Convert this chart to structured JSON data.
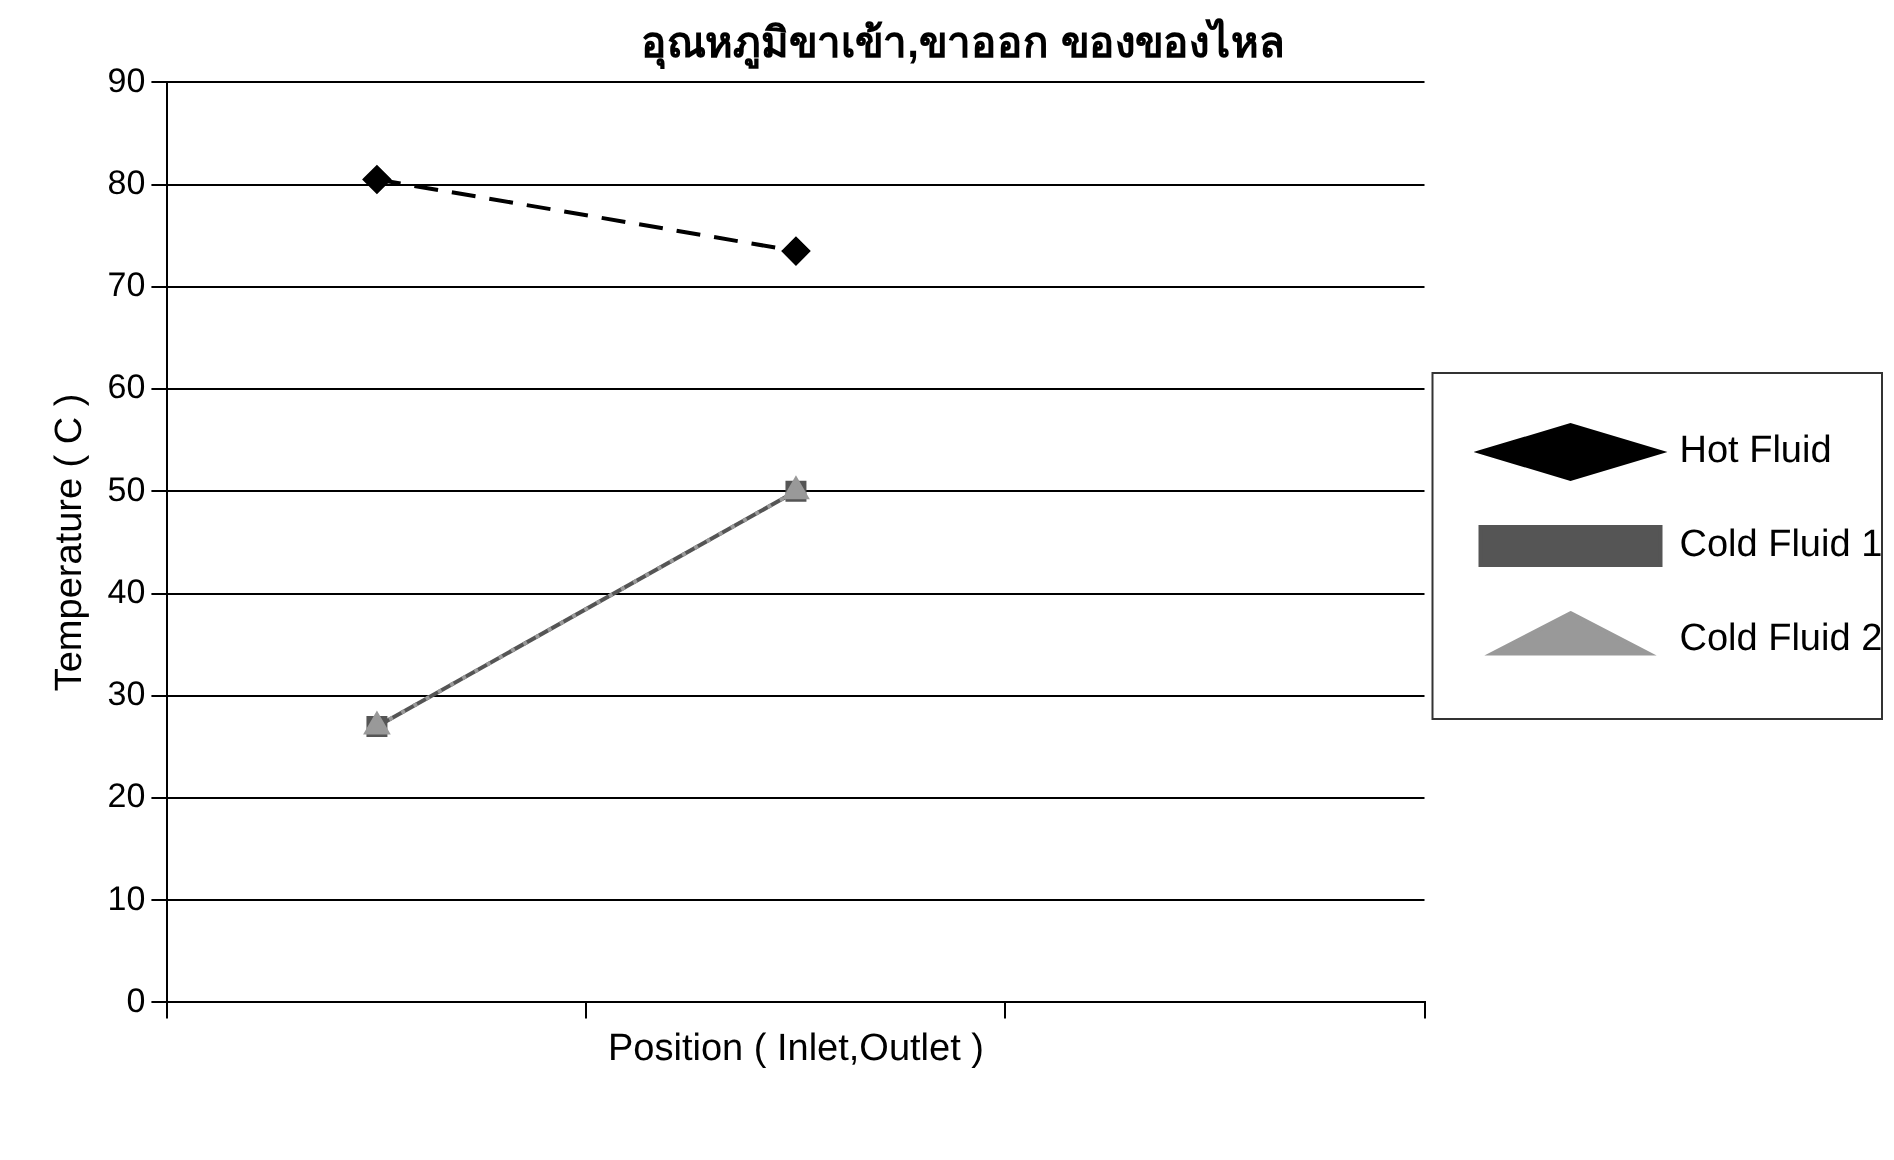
{
  "chart_data": {
    "type": "line",
    "title": "อุณหภูมิขาเข้า,ขาออก ของของไหล",
    "xlabel": "Position ( Inlet,Outlet )",
    "ylabel": "Temperature ( C )",
    "categories": [
      null,
      null,
      null
    ],
    "series": [
      {
        "name": "Hot Fluid",
        "color": "#000000",
        "values": [
          80.5,
          73.5,
          null
        ],
        "marker": "diamond",
        "line_style": "dashed"
      },
      {
        "name": "Cold Fluid 1",
        "color": "#555555",
        "values": [
          27,
          50,
          null
        ],
        "marker": "square",
        "line_style": "solid"
      },
      {
        "name": "Cold Fluid 2",
        "color": "#999999",
        "values": [
          27,
          50,
          null
        ],
        "marker": "triangle",
        "line_style": "dotted"
      }
    ],
    "ylim": [
      0,
      90
    ],
    "yticks": [
      0,
      10,
      20,
      30,
      40,
      50,
      60,
      70,
      80,
      90
    ],
    "grid": "y",
    "legend": "right",
    "tick_labels": "y"
  }
}
